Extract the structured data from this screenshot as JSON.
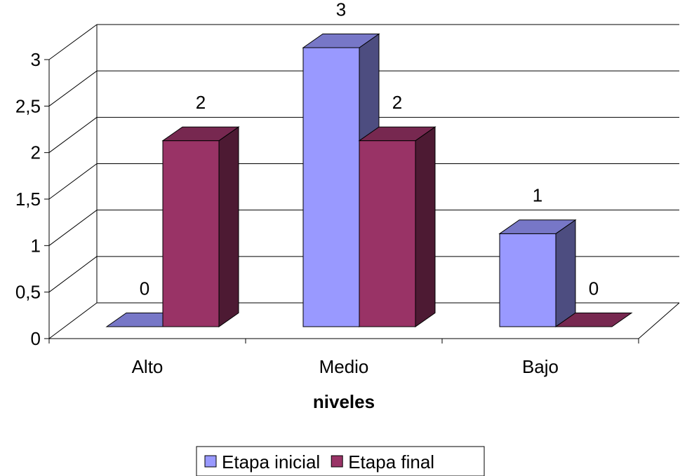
{
  "chart_data": {
    "type": "bar",
    "style": "3d-clustered-column",
    "categories": [
      "Alto",
      "Medio",
      "Bajo"
    ],
    "series": [
      {
        "name": "Etapa inicial",
        "values": [
          0,
          3,
          1
        ],
        "color": "#9999FF"
      },
      {
        "name": "Etapa final",
        "values": [
          2,
          2,
          0
        ],
        "color": "#993366"
      }
    ],
    "xlabel": "niveles",
    "ylabel": "",
    "ylim": [
      0,
      3
    ],
    "yticks": [
      "0",
      "0,5",
      "1",
      "1,5",
      "2",
      "2,5",
      "3"
    ],
    "ytick_values": [
      0,
      0.5,
      1,
      1.5,
      2,
      2.5,
      3
    ],
    "data_labels": true,
    "grid": true,
    "legend": "bottom"
  }
}
